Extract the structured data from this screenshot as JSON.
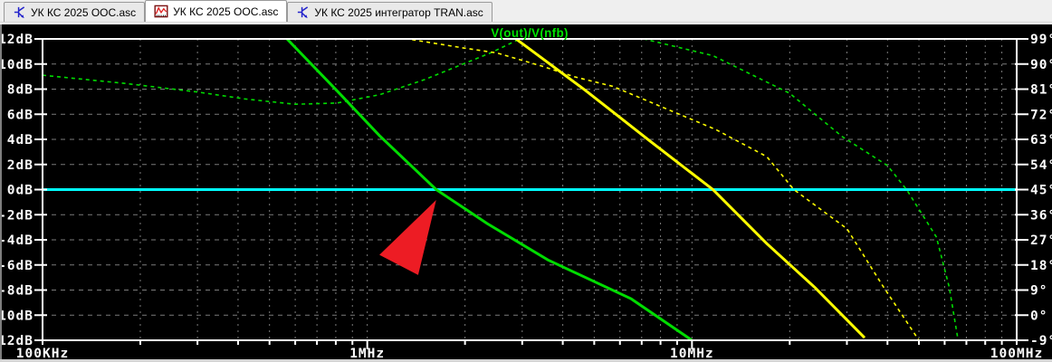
{
  "tabs": [
    {
      "label": "УК КС 2025 ООС.asc",
      "icon": "schematic-icon",
      "active": false
    },
    {
      "label": "УК КС 2025 ООС.asc",
      "icon": "waveform-icon",
      "active": true
    },
    {
      "label": "УК КС 2025 интегратор TRAN.asc",
      "icon": "schematic-icon",
      "active": false
    }
  ],
  "chart_data": {
    "type": "line",
    "title": "V(out)/V(nfb)",
    "title_color": "#00e400",
    "background": "#000000",
    "border_color": "#ffffff",
    "grid": {
      "color": "#7b7b7b"
    },
    "x_axis": {
      "scale": "log",
      "unit": "Hz",
      "min_hz": 100000,
      "max_hz": 100000000,
      "ticks": [
        {
          "hz": 100000,
          "label": "100KHz"
        },
        {
          "hz": 1000000,
          "label": "1MHz"
        },
        {
          "hz": 10000000,
          "label": "10MHz"
        },
        {
          "hz": 100000000,
          "label": "100MHz"
        }
      ]
    },
    "y_axis_left": {
      "unit": "dB",
      "min": -12,
      "max": 12,
      "step": 2,
      "tick_labels": [
        "12dB",
        "10dB",
        "8dB",
        "6dB",
        "4dB",
        "2dB",
        "0dB",
        "-2dB",
        "-4dB",
        "-6dB",
        "-8dB",
        "-10dB",
        "-12dB"
      ]
    },
    "y_axis_right": {
      "unit": "deg",
      "min": -9,
      "max": 99,
      "step": 9,
      "tick_labels": [
        "99°",
        "90°",
        "81°",
        "72°",
        "63°",
        "54°",
        "45°",
        "36°",
        "27°",
        "18°",
        "9°",
        "0°",
        "-9°"
      ]
    },
    "series": [
      {
        "name": "zero-db-reference",
        "color": "#00ffff",
        "style": "solid",
        "width": 3,
        "axis": "dB",
        "points": [
          [
            100000,
            0
          ],
          [
            100000000,
            0
          ]
        ]
      },
      {
        "name": "phase-green-dashed",
        "color": "#00dc00",
        "style": "dashed",
        "width": 1.6,
        "axis": "deg",
        "points": [
          [
            100000,
            86
          ],
          [
            181000,
            83
          ],
          [
            299000,
            80
          ],
          [
            420000,
            77.5
          ],
          [
            599000,
            75.6
          ],
          [
            805000,
            76
          ],
          [
            1090000,
            79
          ],
          [
            1500000,
            84.4
          ],
          [
            2400000,
            94
          ],
          [
            2950000,
            99
          ],
          [
            3500000,
            101
          ],
          [
            6000000,
            101
          ],
          [
            7100000,
            99
          ],
          [
            11600000,
            93
          ],
          [
            20000000,
            79.5
          ],
          [
            29000000,
            64
          ],
          [
            40000000,
            53.6
          ],
          [
            45800000,
            45
          ],
          [
            56600000,
            28
          ],
          [
            62000000,
            10
          ],
          [
            66000000,
            -9
          ]
        ]
      },
      {
        "name": "phase-yellow-dashed",
        "color": "#ffff00",
        "style": "dashed",
        "width": 1.6,
        "axis": "deg",
        "points": [
          [
            1250000,
            100.5
          ],
          [
            1330000,
            99
          ],
          [
            1970000,
            95.8
          ],
          [
            2500000,
            94
          ],
          [
            3440000,
            89.3
          ],
          [
            4350000,
            85.4
          ],
          [
            5700000,
            82
          ],
          [
            11800000,
            66.6
          ],
          [
            17000000,
            56.8
          ],
          [
            20600000,
            45
          ],
          [
            30000000,
            31
          ],
          [
            38600000,
            10.7
          ],
          [
            50000000,
            -9
          ]
        ]
      },
      {
        "name": "magnitude-green",
        "color": "#00dc00",
        "style": "solid",
        "width": 3,
        "axis": "dB",
        "points": [
          [
            520000,
            13.5
          ],
          [
            566000,
            12
          ],
          [
            805000,
            7.9
          ],
          [
            1090000,
            4.3
          ],
          [
            1630000,
            0
          ],
          [
            2340000,
            -2.7
          ],
          [
            3600000,
            -5.6
          ],
          [
            6500000,
            -8.7
          ],
          [
            10000000,
            -12
          ]
        ]
      },
      {
        "name": "magnitude-yellow",
        "color": "#ffff00",
        "style": "solid",
        "width": 3,
        "axis": "dB",
        "points": [
          [
            2700000,
            13
          ],
          [
            2870000,
            12
          ],
          [
            4700000,
            7.9
          ],
          [
            7400000,
            3.9
          ],
          [
            11600000,
            0
          ],
          [
            17000000,
            -4.3
          ],
          [
            23900000,
            -7.8
          ],
          [
            34000000,
            -11.8
          ]
        ]
      }
    ],
    "annotation": {
      "name": "red-arrow",
      "shape": "triangle",
      "color": "#ed1c24",
      "points_freq_db": [
        [
          1630000,
          -0.83
        ],
        [
          1090000,
          -5.2
        ],
        [
          1435000,
          -6.8
        ]
      ]
    }
  }
}
